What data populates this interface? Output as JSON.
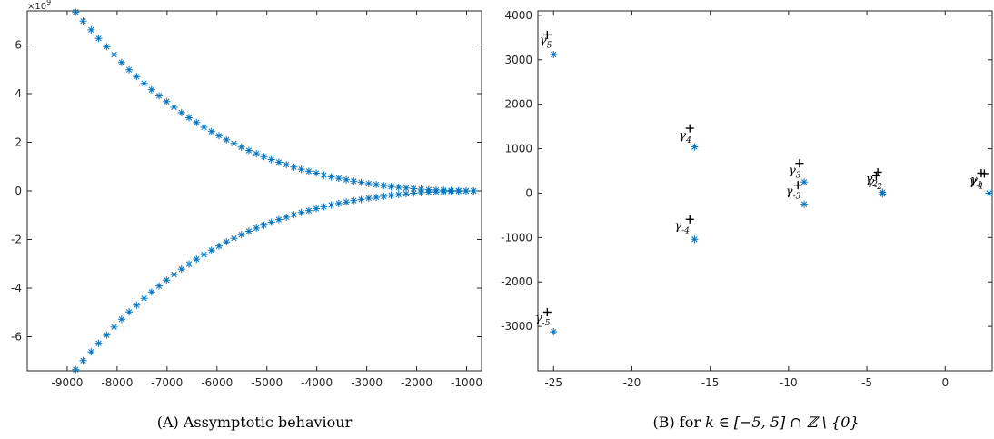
{
  "charts": {
    "left": {
      "caption": "(A) Assymptotic behaviour",
      "exponent_label": "×10",
      "exponent_power": "9"
    },
    "right": {
      "caption_prefix": "(B) for",
      "caption_math": "k ∈ [−5, 5] ∩ ℤ \\ {0}"
    }
  },
  "chart_data": [
    {
      "type": "scatter",
      "marker": "asterisk",
      "color": "#0072BD",
      "xlim": [
        -9800,
        -700
      ],
      "ylim": [
        -7.4,
        7.4
      ],
      "y_scale_note": "×10^9",
      "xticks": [
        -9000,
        -8000,
        -7000,
        -6000,
        -5000,
        -4000,
        -3000,
        -2000,
        -1000
      ],
      "xtick_labels": [
        "-9000",
        "-8000",
        "-7000",
        "-6000",
        "-5000",
        "-4000",
        "-3000",
        "-2000",
        "-1000"
      ],
      "yticks": [
        -6,
        -4,
        -2,
        0,
        2,
        4,
        6
      ],
      "ytick_labels": [
        "-6",
        "-4",
        "-2",
        "0",
        "2",
        "4",
        "6"
      ],
      "series": [
        {
          "points": [
            [
              -8830,
              7.35
            ],
            [
              -8680,
              6.98
            ],
            [
              -8520,
              6.62
            ],
            [
              -8370,
              6.27
            ],
            [
              -8210,
              5.93
            ],
            [
              -8060,
              5.6
            ],
            [
              -7910,
              5.28
            ],
            [
              -7760,
              4.98
            ],
            [
              -7610,
              4.7
            ],
            [
              -7460,
              4.42
            ],
            [
              -7310,
              4.16
            ],
            [
              -7160,
              3.91
            ],
            [
              -7010,
              3.67
            ],
            [
              -6860,
              3.44
            ],
            [
              -6710,
              3.22
            ],
            [
              -6560,
              3.01
            ],
            [
              -6410,
              2.81
            ],
            [
              -6260,
              2.62
            ],
            [
              -6110,
              2.44
            ],
            [
              -5960,
              2.27
            ],
            [
              -5810,
              2.1
            ],
            [
              -5660,
              1.95
            ],
            [
              -5510,
              1.8
            ],
            [
              -5360,
              1.66
            ],
            [
              -5210,
              1.53
            ],
            [
              -5060,
              1.41
            ],
            [
              -4910,
              1.29
            ],
            [
              -4760,
              1.18
            ],
            [
              -4610,
              1.08
            ],
            [
              -4460,
              0.98
            ],
            [
              -4310,
              0.89
            ],
            [
              -4160,
              0.81
            ],
            [
              -4010,
              0.73
            ],
            [
              -3860,
              0.65
            ],
            [
              -3710,
              0.58
            ],
            [
              -3560,
              0.52
            ],
            [
              -3410,
              0.46
            ],
            [
              -3260,
              0.4
            ],
            [
              -3110,
              0.35
            ],
            [
              -2960,
              0.3
            ],
            [
              -2810,
              0.26
            ],
            [
              -2660,
              0.22
            ],
            [
              -2510,
              0.18
            ],
            [
              -2360,
              0.15
            ],
            [
              -2210,
              0.12
            ],
            [
              -2060,
              0.095
            ],
            [
              -1910,
              0.072
            ],
            [
              -1760,
              0.053
            ],
            [
              -1610,
              0.038
            ],
            [
              -1460,
              0.026
            ],
            [
              -1310,
              0.016
            ],
            [
              -1160,
              0.009
            ],
            [
              -1010,
              0.004
            ],
            [
              -860,
              0.001
            ],
            [
              -8830,
              -7.35
            ],
            [
              -8680,
              -6.98
            ],
            [
              -8520,
              -6.62
            ],
            [
              -8370,
              -6.27
            ],
            [
              -8210,
              -5.93
            ],
            [
              -8060,
              -5.6
            ],
            [
              -7910,
              -5.28
            ],
            [
              -7760,
              -4.98
            ],
            [
              -7610,
              -4.7
            ],
            [
              -7460,
              -4.42
            ],
            [
              -7310,
              -4.16
            ],
            [
              -7160,
              -3.91
            ],
            [
              -7010,
              -3.67
            ],
            [
              -6860,
              -3.44
            ],
            [
              -6710,
              -3.22
            ],
            [
              -6560,
              -3.01
            ],
            [
              -6410,
              -2.81
            ],
            [
              -6260,
              -2.62
            ],
            [
              -6110,
              -2.44
            ],
            [
              -5960,
              -2.27
            ],
            [
              -5810,
              -2.1
            ],
            [
              -5660,
              -1.95
            ],
            [
              -5510,
              -1.8
            ],
            [
              -5360,
              -1.66
            ],
            [
              -5210,
              -1.53
            ],
            [
              -5060,
              -1.41
            ],
            [
              -4910,
              -1.29
            ],
            [
              -4760,
              -1.18
            ],
            [
              -4610,
              -1.08
            ],
            [
              -4460,
              -0.98
            ],
            [
              -4310,
              -0.89
            ],
            [
              -4160,
              -0.81
            ],
            [
              -4010,
              -0.73
            ],
            [
              -3860,
              -0.65
            ],
            [
              -3710,
              -0.58
            ],
            [
              -3560,
              -0.52
            ],
            [
              -3410,
              -0.46
            ],
            [
              -3260,
              -0.4
            ],
            [
              -3110,
              -0.35
            ],
            [
              -2960,
              -0.3
            ],
            [
              -2810,
              -0.26
            ],
            [
              -2660,
              -0.22
            ],
            [
              -2510,
              -0.18
            ],
            [
              -2360,
              -0.15
            ],
            [
              -2210,
              -0.12
            ],
            [
              -2060,
              -0.095
            ],
            [
              -1910,
              -0.072
            ],
            [
              -1760,
              -0.053
            ],
            [
              -1610,
              -0.038
            ],
            [
              -1460,
              -0.026
            ],
            [
              -1310,
              -0.016
            ],
            [
              -1160,
              -0.009
            ],
            [
              -1010,
              -0.004
            ],
            [
              -860,
              -0.001
            ]
          ]
        }
      ]
    },
    {
      "type": "scatter",
      "xlim": [
        -26,
        3
      ],
      "ylim": [
        -4000,
        4100
      ],
      "xticks": [
        -25,
        -20,
        -15,
        -10,
        -5,
        0
      ],
      "xtick_labels": [
        "-25",
        "-20",
        "-15",
        "-10",
        "-5",
        "0"
      ],
      "yticks": [
        -3000,
        -2000,
        -1000,
        0,
        1000,
        2000,
        3000,
        4000
      ],
      "ytick_labels": [
        "-3000",
        "-2000",
        "-1000",
        "0",
        "1000",
        "2000",
        "3000",
        "4000"
      ],
      "series": [
        {
          "marker": "asterisk",
          "color": "#0072BD",
          "points": [
            [
              -25.0,
              3120
            ],
            [
              -25.0,
              -3120
            ],
            [
              -16.0,
              1040
            ],
            [
              -16.0,
              -1040
            ],
            [
              -9.0,
              250
            ],
            [
              -9.0,
              -250
            ],
            [
              -4.0,
              20
            ],
            [
              -4.0,
              -20
            ],
            [
              2.8,
              0
            ]
          ]
        },
        {
          "marker": "plus",
          "color": "#000000",
          "points": [
            [
              -25.4,
              3560
            ],
            [
              -25.4,
              -2680
            ],
            [
              -16.3,
              1460
            ],
            [
              -16.3,
              -590
            ],
            [
              -9.3,
              670
            ],
            [
              -9.4,
              180
            ],
            [
              -4.3,
              470
            ],
            [
              -4.4,
              390
            ],
            [
              2.3,
              450
            ],
            [
              2.5,
              440
            ]
          ]
        }
      ],
      "annotations": [
        {
          "label": "γ",
          "sub": "5",
          "x": -25.5,
          "y": 3350
        },
        {
          "label": "γ",
          "sub": "-5",
          "x": -25.7,
          "y": -2900
        },
        {
          "label": "γ",
          "sub": "4",
          "x": -16.6,
          "y": 1220
        },
        {
          "label": "γ",
          "sub": "-4",
          "x": -16.8,
          "y": -820
        },
        {
          "label": "γ",
          "sub": "3",
          "x": -9.6,
          "y": 430
        },
        {
          "label": "γ",
          "sub": "-3",
          "x": -9.7,
          "y": -40
        },
        {
          "label": "γ",
          "sub": "2",
          "x": -4.7,
          "y": 230
        },
        {
          "label": "γ",
          "sub": "-2",
          "x": -4.5,
          "y": 170
        },
        {
          "label": "γ",
          "sub": "1",
          "x": 2.0,
          "y": 210
        },
        {
          "label": "γ",
          "sub": "-1",
          "x": 2.0,
          "y": 180
        }
      ]
    }
  ]
}
